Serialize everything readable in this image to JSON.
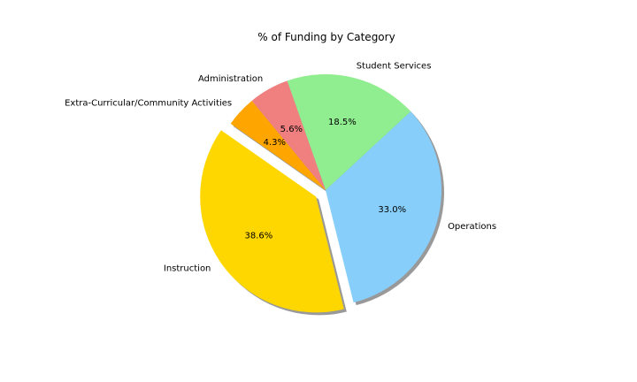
{
  "chart_data": {
    "type": "pie",
    "title": "% of Funding by Category",
    "autopct_format": "0.1%",
    "start_angle_deg": 145,
    "shadow": true,
    "slices": [
      {
        "label": "Instruction",
        "value": 38.6,
        "pct_label": "38.6%",
        "color": "#ffd700",
        "explode": 0.1
      },
      {
        "label": "Operations",
        "value": 33.0,
        "pct_label": "33.0%",
        "color": "#87cefa",
        "explode": 0.0
      },
      {
        "label": "Student Services",
        "value": 18.5,
        "pct_label": "18.5%",
        "color": "#90ee90",
        "explode": 0.0
      },
      {
        "label": "Administration",
        "value": 5.6,
        "pct_label": "5.6%",
        "color": "#f08080",
        "explode": 0.0
      },
      {
        "label": "Extra-Curricular/Community Activities",
        "value": 4.3,
        "pct_label": "4.3%",
        "color": "#ffa500",
        "explode": 0.0
      }
    ]
  }
}
